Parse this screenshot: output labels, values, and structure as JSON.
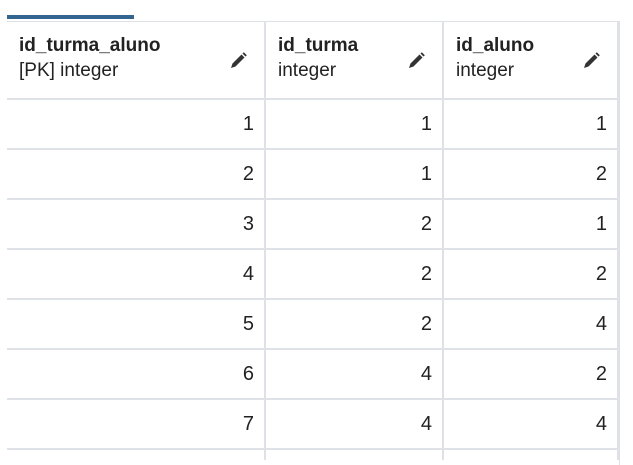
{
  "columns": [
    {
      "name": "id_turma_aluno",
      "type": "[PK] integer",
      "edit_icon": "pencil-icon"
    },
    {
      "name": "id_turma",
      "type": "integer",
      "edit_icon": "pencil-icon"
    },
    {
      "name": "id_aluno",
      "type": "integer",
      "edit_icon": "pencil-icon"
    }
  ],
  "rows": [
    [
      "1",
      "1",
      "1"
    ],
    [
      "2",
      "1",
      "2"
    ],
    [
      "3",
      "2",
      "1"
    ],
    [
      "4",
      "2",
      "2"
    ],
    [
      "5",
      "2",
      "4"
    ],
    [
      "6",
      "4",
      "2"
    ],
    [
      "7",
      "4",
      "4"
    ]
  ],
  "colors": {
    "accent": "#326690",
    "border": "#dee2e6",
    "text": "#222222"
  }
}
